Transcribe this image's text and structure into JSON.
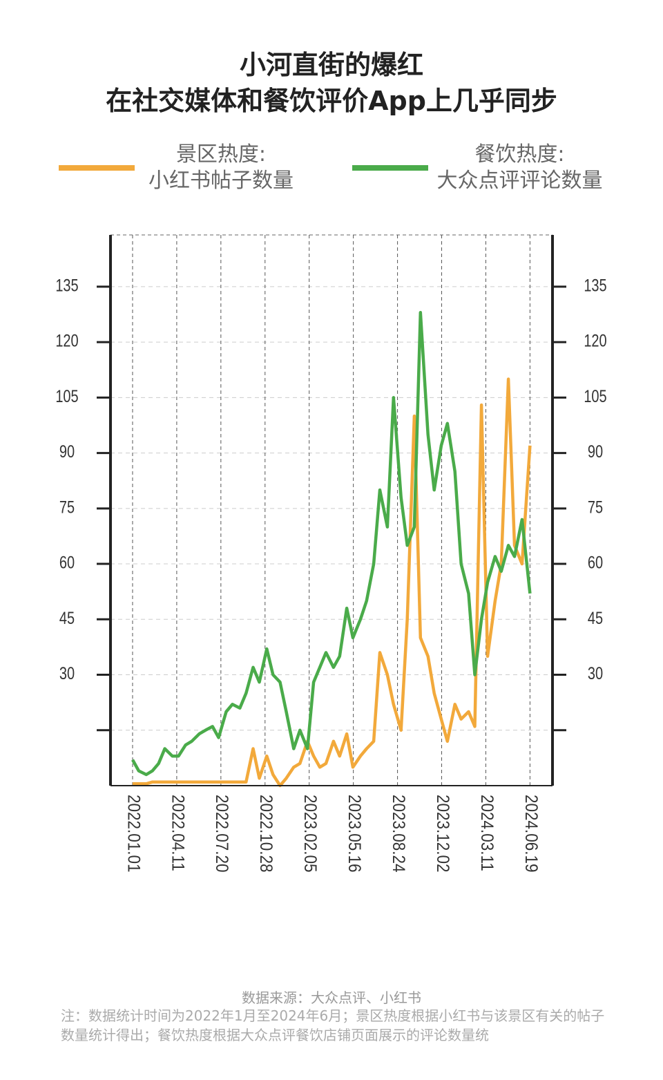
{
  "chart_data": {
    "type": "line",
    "title": "小河直街的爆红\n在社交媒体和餐饮评价App上几乎同步",
    "source": "数据来源：大众点评、小红书",
    "note": "注：数据统计时间为2022年1月至2024年6月；景区热度根据小红书与该景区有关的帖子数量统计得出；餐饮热度根据大众点评餐饮店铺页面展示的评论数量统",
    "x": [
      "2022.01.01",
      "2022.01.15",
      "2022.02.01",
      "2022.02.15",
      "2022.03.01",
      "2022.03.15",
      "2022.04.01",
      "2022.04.15",
      "2022.05.01",
      "2022.05.15",
      "2022.06.01",
      "2022.06.15",
      "2022.07.01",
      "2022.07.15",
      "2022.08.01",
      "2022.08.15",
      "2022.09.01",
      "2022.09.15",
      "2022.10.01",
      "2022.10.15",
      "2022.11.01",
      "2022.11.15",
      "2022.12.01",
      "2022.12.15",
      "2023.01.01",
      "2023.01.15",
      "2023.02.01",
      "2023.02.15",
      "2023.03.01",
      "2023.03.15",
      "2023.04.01",
      "2023.04.15",
      "2023.05.01",
      "2023.05.15",
      "2023.06.01",
      "2023.06.15",
      "2023.07.01",
      "2023.07.15",
      "2023.08.01",
      "2023.08.15",
      "2023.09.01",
      "2023.09.15",
      "2023.10.01",
      "2023.10.15",
      "2023.11.01",
      "2023.11.15",
      "2023.12.01",
      "2023.12.15",
      "2024.01.01",
      "2024.01.15",
      "2024.02.01",
      "2024.02.15",
      "2024.03.01",
      "2024.03.15",
      "2024.04.01",
      "2024.04.15",
      "2024.05.01",
      "2024.05.15",
      "2024.06.01",
      "2024.06.19"
    ],
    "series": [
      {
        "name": "景区热度:\n小红书帖子数量",
        "color": "#f2a93b",
        "values": [
          0.5,
          0.5,
          0.5,
          1,
          1,
          1,
          1,
          1,
          1,
          1,
          1,
          1,
          1,
          1,
          1,
          1,
          1,
          1,
          10,
          2,
          8,
          3,
          0,
          2,
          5,
          6,
          12,
          8,
          5,
          6,
          12,
          8,
          14,
          5,
          8,
          10,
          12,
          36,
          30,
          22,
          15,
          45,
          100,
          40,
          35,
          25,
          18,
          12,
          22,
          18,
          20,
          16,
          103,
          35,
          50,
          60,
          110,
          65,
          60,
          92
        ]
      },
      {
        "name": "餐饮热度:\n大众点评评论数量",
        "color": "#4aab4a",
        "values": [
          7,
          4,
          3,
          4,
          6,
          10,
          8,
          8,
          11,
          12,
          14,
          15,
          16,
          13,
          20,
          22,
          21,
          25,
          32,
          28,
          37,
          30,
          28,
          20,
          10,
          15,
          10,
          28,
          32,
          36,
          32,
          35,
          48,
          40,
          45,
          50,
          60,
          80,
          70,
          105,
          78,
          65,
          70,
          128,
          95,
          80,
          92,
          98,
          85,
          60,
          52,
          30,
          45,
          55,
          62,
          58,
          65,
          62,
          72,
          52
        ]
      }
    ],
    "xlim": [
      "2021.11.12",
      "2024.08.09"
    ],
    "xticks": [
      "2022.01.01",
      "2022.04.11",
      "2022.07.20",
      "2022.10.28",
      "2023.02.05",
      "2023.05.16",
      "2023.08.24",
      "2023.12.02",
      "2024.03.11",
      "2024.06.19"
    ],
    "ylim": [
      0,
      149
    ],
    "yticks": [
      {
        "value": 15,
        "label": null
      },
      30,
      45,
      60,
      75,
      90,
      105,
      120,
      135
    ],
    "y2lim": [
      0,
      149
    ],
    "y2ticks": [
      {
        "value": 15,
        "label": null
      },
      30,
      45,
      60,
      75,
      90,
      105,
      120,
      135
    ],
    "grid": true
  }
}
